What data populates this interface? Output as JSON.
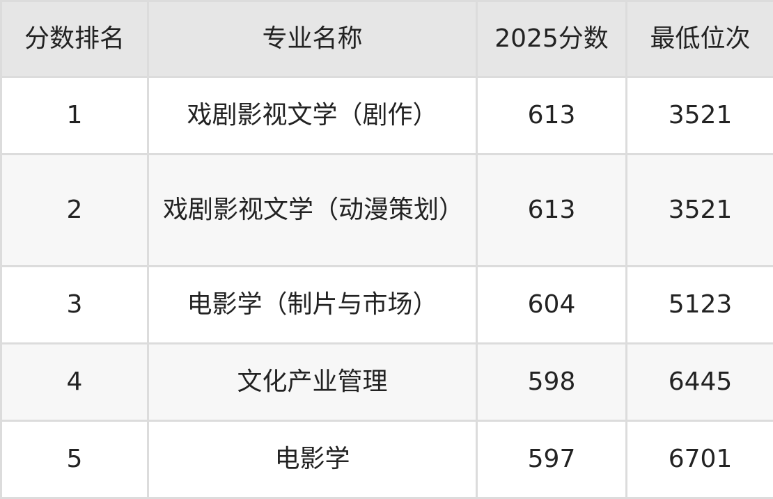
{
  "table": {
    "headers": [
      "分数排名",
      "专业名称",
      "2025分数",
      "最低位次"
    ],
    "rows": [
      [
        "1",
        "戏剧影视文学（剧作）",
        "613",
        "3521"
      ],
      [
        "2",
        "戏剧影视文学（动漫策划）",
        "613",
        "3521"
      ],
      [
        "3",
        "电影学（制片与市场）",
        "604",
        "5123"
      ],
      [
        "4",
        "文化产业管理",
        "598",
        "6445"
      ],
      [
        "5",
        "电影学",
        "597",
        "6701"
      ]
    ]
  },
  "colors": {
    "header_bg": "#e6e6e6",
    "alt_row_bg": "#f7f7f7",
    "border": "#dcdcdc"
  }
}
